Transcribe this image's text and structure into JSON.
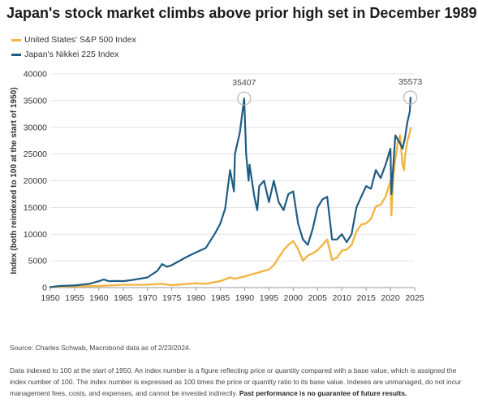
{
  "title": "Japan's stock market climbs above prior high set in December 1989",
  "legend": [
    {
      "label": "United States' S&P 500 Index",
      "color": "#F2B544"
    },
    {
      "label": "Japan's Nikkei 225 Index",
      "color": "#1F5C82"
    }
  ],
  "source": "Source: Charles Schwab, Macrobond data as of 2/23/2024.",
  "notes": {
    "text": "Data indexed to 100 at the start of 1950. An index number is a figure reflecting price or quantity compared with a base value, which is assigned the index number of 100. The index number is expressed as 100 times the price or quantity ratio to its base value. Indexes are unmanaged, do not incur management fees, costs, and expenses, and cannot be invested indirectly. ",
    "bold": "Past performance is no guarantee of future results."
  },
  "chart_data": {
    "type": "line",
    "ylabel": "Index (both reindexed to 100 at the start of 1950)",
    "xlabel": "",
    "xlim": [
      1950,
      2025
    ],
    "ylim": [
      0,
      40000
    ],
    "x_ticks": [
      1950,
      1955,
      1960,
      1965,
      1970,
      1975,
      1980,
      1985,
      1990,
      1995,
      2000,
      2005,
      2010,
      2015,
      2020,
      2025
    ],
    "y_ticks": [
      0,
      5000,
      10000,
      15000,
      20000,
      25000,
      30000,
      35000,
      40000
    ],
    "grid": "horizontal",
    "legend_position": "top-left",
    "annotations": [
      {
        "text": "35407",
        "x": 1989.9,
        "y": 35407
      },
      {
        "text": "35573",
        "x": 2024.1,
        "y": 35573
      }
    ],
    "series": [
      {
        "name": "United States' S&P 500 Index",
        "color": "#F2B544",
        "x": [
          1950,
          1955,
          1960,
          1965,
          1970,
          1973,
          1975,
          1980,
          1982,
          1985,
          1987,
          1988,
          1990,
          1992,
          1995,
          1996,
          1997,
          1998,
          1999,
          2000,
          2001,
          2002,
          2003,
          2004,
          2005,
          2006,
          2007,
          2008,
          2009,
          2010,
          2011,
          2012,
          2013,
          2014,
          2015,
          2016,
          2017,
          2018,
          2019,
          2020,
          2020.2,
          2020.6,
          2021,
          2021.5,
          2022,
          2022.5,
          2022.8,
          2023,
          2023.5,
          2024,
          2024.15
        ],
        "values": [
          100,
          240,
          300,
          520,
          550,
          700,
          460,
          800,
          700,
          1200,
          1900,
          1650,
          2100,
          2600,
          3400,
          4200,
          5600,
          7000,
          8000,
          8700,
          7200,
          5000,
          6000,
          6400,
          7000,
          8000,
          9000,
          5200,
          5600,
          6900,
          7100,
          8000,
          10500,
          11800,
          12000,
          12900,
          15200,
          15500,
          17000,
          20000,
          13500,
          21000,
          24000,
          27000,
          28500,
          23000,
          22000,
          24500,
          27500,
          29000,
          29800
        ]
      },
      {
        "name": "Japan's Nikkei 225 Index",
        "color": "#1F5C82",
        "x": [
          1950,
          1952,
          1955,
          1958,
          1960,
          1961,
          1962,
          1964,
          1965,
          1967,
          1968,
          1970,
          1972,
          1973,
          1974,
          1975,
          1978,
          1980,
          1982,
          1984,
          1985,
          1986,
          1987,
          1987.8,
          1988,
          1989,
          1989.9,
          1990.3,
          1990.8,
          1991,
          1992,
          1992.6,
          1993,
          1994,
          1995,
          1996,
          1997,
          1998,
          1999,
          2000,
          2001,
          2002,
          2003,
          2004,
          2005,
          2006,
          2007,
          2008,
          2009,
          2010,
          2011,
          2012,
          2013,
          2014,
          2015,
          2016,
          2017,
          2018,
          2019,
          2020,
          2020.2,
          2021,
          2022,
          2022.5,
          2023,
          2023.5,
          2024,
          2024.15
        ],
        "values": [
          100,
          300,
          400,
          700,
          1200,
          1500,
          1200,
          1250,
          1200,
          1450,
          1600,
          1900,
          3100,
          4400,
          3900,
          4200,
          5700,
          6600,
          7400,
          10300,
          12000,
          14800,
          22000,
          18000,
          25000,
          29000,
          35407,
          25000,
          20000,
          23000,
          17000,
          14500,
          19000,
          20000,
          16000,
          20000,
          16000,
          14500,
          17500,
          18000,
          12000,
          9000,
          8000,
          11000,
          15000,
          16500,
          17000,
          9000,
          9000,
          10000,
          8500,
          10000,
          15000,
          17000,
          19000,
          18500,
          22000,
          20500,
          23000,
          26000,
          17500,
          28500,
          27000,
          26000,
          28000,
          31000,
          33000,
          35573
        ]
      }
    ]
  }
}
